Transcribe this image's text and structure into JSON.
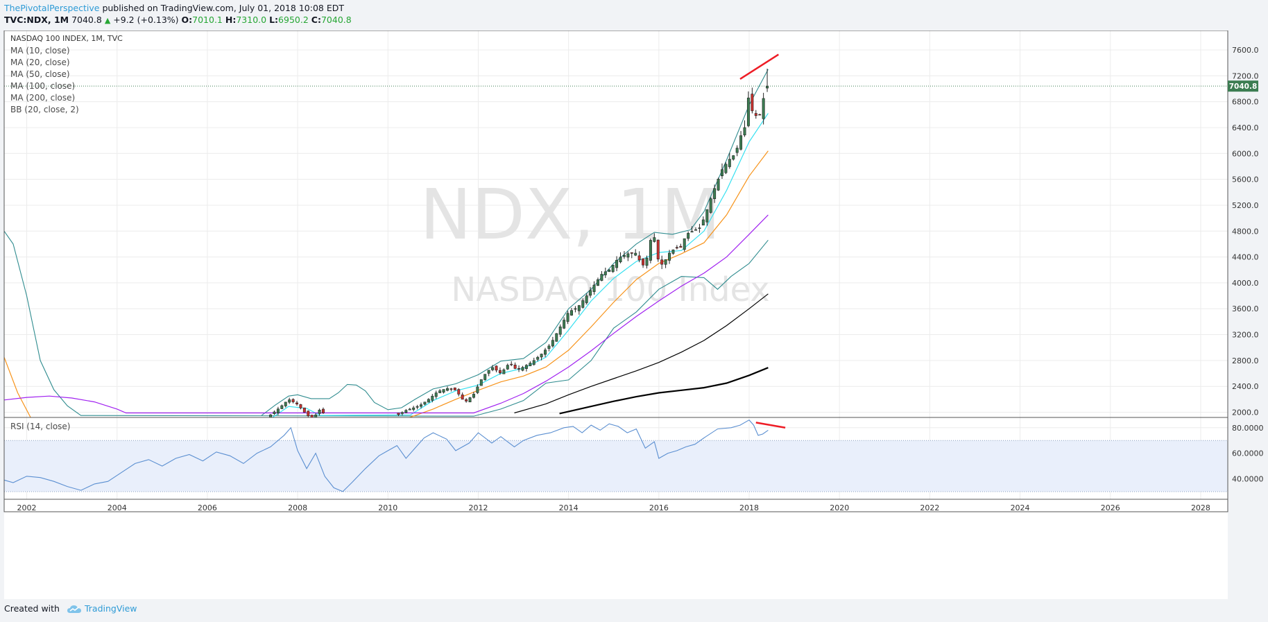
{
  "header": {
    "author": "ThePivotalPerspective",
    "published_text": "published on TradingView.com, July 01, 2018 10:08 EDT",
    "symbol": "TVC:NDX, 1M",
    "last": "7040.8",
    "change": "+9.2 (+0.13%)",
    "open_label": "O:",
    "open": "7010.1",
    "high_label": "H:",
    "high": "7310.0",
    "low_label": "L:",
    "low": "6950.2",
    "close_label": "C:",
    "close": "7040.8"
  },
  "footer": {
    "created_with": "Created with",
    "brand": "TradingView"
  },
  "colors": {
    "up": "#3c7d52",
    "down": "#c9322f",
    "bb": "#2f8c8f",
    "ma10": "#34e0f0",
    "ma20": "#f7931a",
    "ma50": "#a020f0",
    "ma100": "#000000",
    "ma200": "#000000",
    "rsi": "#5b8fd1",
    "annotation": "#ee1c25",
    "price_badge": "#3c7d52"
  },
  "chart_data": [
    {
      "type": "candlestick",
      "title": "NASDAQ 100 INDEX, 1M, TVC",
      "watermark_symbol": "NDX, 1M",
      "watermark_name": "NASDAQ 100 Index",
      "legend": [
        "MA (10, close)",
        "MA (20, close)",
        "MA (50, close)",
        "MA (100, close)",
        "MA (200, close)",
        "BB (20, close, 2)"
      ],
      "x_ticks": [
        "2002",
        "2004",
        "2006",
        "2008",
        "2010",
        "2012",
        "2014",
        "2016",
        "2018",
        "2020",
        "2022",
        "2024",
        "2026",
        "2028"
      ],
      "xlim": [
        2001.5,
        2028.6
      ],
      "y_ticks": [
        "2000.0",
        "2400.0",
        "2800.0",
        "3200.0",
        "3600.0",
        "4000.0",
        "4400.0",
        "4800.0",
        "5200.0",
        "5600.0",
        "6000.0",
        "6400.0",
        "6800.0",
        "7200.0",
        "7600.0"
      ],
      "ylim": [
        1920,
        7900
      ],
      "last_price_label": "7040.8",
      "last_price": 7040.8,
      "ohlc_anchors": [
        [
          2007.4,
          1960
        ],
        [
          2007.6,
          2070
        ],
        [
          2007.8,
          2200
        ],
        [
          2008.0,
          2120
        ],
        [
          2008.15,
          2000
        ],
        [
          2008.3,
          1900
        ],
        [
          2008.4,
          1960
        ],
        [
          2008.5,
          2050
        ],
        [
          2008.6,
          1960
        ],
        [
          2010.2,
          1950
        ],
        [
          2010.4,
          2030
        ],
        [
          2010.7,
          2100
        ],
        [
          2010.9,
          2200
        ],
        [
          2011.1,
          2320
        ],
        [
          2011.3,
          2370
        ],
        [
          2011.5,
          2340
        ],
        [
          2011.6,
          2250
        ],
        [
          2011.7,
          2150
        ],
        [
          2011.9,
          2280
        ],
        [
          2012.1,
          2550
        ],
        [
          2012.3,
          2700
        ],
        [
          2012.5,
          2600
        ],
        [
          2012.7,
          2770
        ],
        [
          2012.85,
          2650
        ],
        [
          2013.0,
          2700
        ],
        [
          2013.2,
          2780
        ],
        [
          2013.4,
          2900
        ],
        [
          2013.6,
          3050
        ],
        [
          2013.8,
          3300
        ],
        [
          2014.0,
          3550
        ],
        [
          2014.2,
          3620
        ],
        [
          2014.4,
          3800
        ],
        [
          2014.6,
          4000
        ],
        [
          2014.75,
          4150
        ],
        [
          2014.9,
          4200
        ],
        [
          2015.1,
          4380
        ],
        [
          2015.3,
          4450
        ],
        [
          2015.5,
          4460
        ],
        [
          2015.6,
          4300
        ],
        [
          2015.7,
          4250
        ],
        [
          2015.8,
          4650
        ],
        [
          2015.9,
          4700
        ],
        [
          2016.0,
          4300
        ],
        [
          2016.1,
          4280
        ],
        [
          2016.2,
          4440
        ],
        [
          2016.35,
          4530
        ],
        [
          2016.5,
          4550
        ],
        [
          2016.6,
          4750
        ],
        [
          2016.75,
          4800
        ],
        [
          2016.9,
          4850
        ],
        [
          2017.0,
          5000
        ],
        [
          2017.2,
          5400
        ],
        [
          2017.4,
          5750
        ],
        [
          2017.55,
          5900
        ],
        [
          2017.7,
          6000
        ],
        [
          2017.8,
          6250
        ],
        [
          2017.9,
          6400
        ],
        [
          2018.0,
          6950
        ],
        [
          2018.08,
          6600
        ],
        [
          2018.17,
          6580
        ],
        [
          2018.25,
          6600
        ],
        [
          2018.33,
          6900
        ],
        [
          2018.42,
          7040
        ]
      ],
      "moving_averages": {
        "ma10": [
          [
            2007.4,
            1900
          ],
          [
            2007.8,
            2090
          ],
          [
            2008.2,
            2060
          ],
          [
            2008.5,
            1950
          ],
          [
            2010.5,
            1960
          ],
          [
            2011.0,
            2180
          ],
          [
            2011.5,
            2330
          ],
          [
            2012.0,
            2420
          ],
          [
            2012.5,
            2600
          ],
          [
            2013.0,
            2680
          ],
          [
            2013.5,
            2850
          ],
          [
            2014.0,
            3270
          ],
          [
            2014.5,
            3720
          ],
          [
            2015.0,
            4070
          ],
          [
            2015.5,
            4330
          ],
          [
            2016.0,
            4470
          ],
          [
            2016.5,
            4500
          ],
          [
            2017.0,
            4800
          ],
          [
            2017.5,
            5430
          ],
          [
            2018.0,
            6180
          ],
          [
            2018.42,
            6620
          ]
        ],
        "ma20": [
          [
            2001.5,
            2850
          ],
          [
            2001.8,
            2300
          ],
          [
            2002.1,
            1900
          ],
          [
            2010.4,
            1900
          ],
          [
            2011.0,
            2050
          ],
          [
            2011.5,
            2200
          ],
          [
            2012.0,
            2340
          ],
          [
            2012.5,
            2470
          ],
          [
            2013.0,
            2560
          ],
          [
            2013.5,
            2700
          ],
          [
            2014.0,
            2960
          ],
          [
            2014.5,
            3320
          ],
          [
            2015.0,
            3700
          ],
          [
            2015.5,
            4050
          ],
          [
            2016.0,
            4300
          ],
          [
            2016.5,
            4450
          ],
          [
            2017.0,
            4620
          ],
          [
            2017.5,
            5050
          ],
          [
            2018.0,
            5650
          ],
          [
            2018.42,
            6040
          ]
        ],
        "ma50": [
          [
            2001.5,
            2190
          ],
          [
            2002.0,
            2230
          ],
          [
            2002.5,
            2250
          ],
          [
            2003.0,
            2220
          ],
          [
            2003.5,
            2160
          ],
          [
            2004.0,
            2050
          ],
          [
            2004.2,
            1990
          ],
          [
            2011.9,
            1990
          ],
          [
            2012.5,
            2140
          ],
          [
            2013.0,
            2290
          ],
          [
            2013.5,
            2480
          ],
          [
            2014.0,
            2700
          ],
          [
            2014.5,
            2950
          ],
          [
            2015.0,
            3220
          ],
          [
            2015.5,
            3480
          ],
          [
            2016.0,
            3720
          ],
          [
            2016.5,
            3950
          ],
          [
            2017.0,
            4150
          ],
          [
            2017.5,
            4400
          ],
          [
            2018.0,
            4750
          ],
          [
            2018.42,
            5050
          ]
        ],
        "ma100": [
          [
            2012.8,
            1990
          ],
          [
            2013.5,
            2130
          ],
          [
            2014.0,
            2270
          ],
          [
            2014.5,
            2400
          ],
          [
            2015.0,
            2520
          ],
          [
            2015.5,
            2640
          ],
          [
            2016.0,
            2770
          ],
          [
            2016.5,
            2930
          ],
          [
            2017.0,
            3110
          ],
          [
            2017.5,
            3340
          ],
          [
            2018.0,
            3600
          ],
          [
            2018.42,
            3830
          ]
        ],
        "ma200": [
          [
            2013.8,
            1980
          ],
          [
            2014.5,
            2090
          ],
          [
            2015.0,
            2170
          ],
          [
            2015.5,
            2240
          ],
          [
            2016.0,
            2300
          ],
          [
            2016.5,
            2340
          ],
          [
            2017.0,
            2380
          ],
          [
            2017.5,
            2450
          ],
          [
            2018.0,
            2570
          ],
          [
            2018.42,
            2690
          ]
        ]
      },
      "bollinger": {
        "upper": [
          [
            2007.2,
            1950
          ],
          [
            2007.5,
            2110
          ],
          [
            2007.8,
            2250
          ],
          [
            2008.0,
            2270
          ],
          [
            2008.3,
            2210
          ],
          [
            2008.7,
            2210
          ],
          [
            2008.9,
            2300
          ],
          [
            2009.1,
            2430
          ],
          [
            2009.3,
            2420
          ],
          [
            2009.5,
            2330
          ],
          [
            2009.7,
            2150
          ],
          [
            2010.0,
            2040
          ],
          [
            2010.3,
            2070
          ],
          [
            2010.6,
            2200
          ],
          [
            2011.0,
            2360
          ],
          [
            2011.5,
            2440
          ],
          [
            2012.0,
            2580
          ],
          [
            2012.5,
            2790
          ],
          [
            2013.0,
            2830
          ],
          [
            2013.5,
            3080
          ],
          [
            2014.0,
            3600
          ],
          [
            2014.5,
            3900
          ],
          [
            2015.0,
            4300
          ],
          [
            2015.5,
            4600
          ],
          [
            2015.9,
            4780
          ],
          [
            2016.3,
            4750
          ],
          [
            2016.7,
            4820
          ],
          [
            2017.0,
            5100
          ],
          [
            2017.5,
            5900
          ],
          [
            2018.0,
            6750
          ],
          [
            2018.42,
            7300
          ]
        ],
        "lower": [
          [
            2001.5,
            4800
          ],
          [
            2001.7,
            4600
          ],
          [
            2002.0,
            3800
          ],
          [
            2002.3,
            2800
          ],
          [
            2002.6,
            2350
          ],
          [
            2002.9,
            2100
          ],
          [
            2003.2,
            1950
          ],
          [
            2011.9,
            1940
          ],
          [
            2012.5,
            2050
          ],
          [
            2013.0,
            2180
          ],
          [
            2013.5,
            2450
          ],
          [
            2014.0,
            2500
          ],
          [
            2014.5,
            2800
          ],
          [
            2015.0,
            3300
          ],
          [
            2015.5,
            3550
          ],
          [
            2016.0,
            3900
          ],
          [
            2016.5,
            4100
          ],
          [
            2017.0,
            4080
          ],
          [
            2017.3,
            3900
          ],
          [
            2017.6,
            4100
          ],
          [
            2018.0,
            4300
          ],
          [
            2018.42,
            4660
          ]
        ]
      },
      "trendline": [
        [
          2017.8,
          7150
        ],
        [
          2018.65,
          7530
        ]
      ]
    },
    {
      "type": "line",
      "legend": [
        "RSI (14, close)"
      ],
      "y_ticks": [
        "40.0000",
        "60.0000",
        "80.0000"
      ],
      "ylim": [
        24,
        88
      ],
      "band": [
        30,
        70
      ],
      "series": [
        {
          "values": [
            [
              2001.5,
              39
            ],
            [
              2001.7,
              37
            ],
            [
              2002.0,
              42
            ],
            [
              2002.3,
              41
            ],
            [
              2002.6,
              38
            ],
            [
              2002.9,
              34
            ],
            [
              2003.2,
              31
            ],
            [
              2003.5,
              36
            ],
            [
              2003.8,
              38
            ],
            [
              2004.1,
              45
            ],
            [
              2004.4,
              52
            ],
            [
              2004.7,
              55
            ],
            [
              2005.0,
              50
            ],
            [
              2005.3,
              56
            ],
            [
              2005.6,
              59
            ],
            [
              2005.9,
              54
            ],
            [
              2006.2,
              61
            ],
            [
              2006.5,
              58
            ],
            [
              2006.8,
              52
            ],
            [
              2007.1,
              60
            ],
            [
              2007.4,
              65
            ],
            [
              2007.7,
              74
            ],
            [
              2007.85,
              80
            ],
            [
              2008.0,
              62
            ],
            [
              2008.2,
              48
            ],
            [
              2008.4,
              60
            ],
            [
              2008.6,
              42
            ],
            [
              2008.8,
              33
            ],
            [
              2009.0,
              30
            ],
            [
              2009.2,
              37
            ],
            [
              2009.5,
              48
            ],
            [
              2009.8,
              58
            ],
            [
              2010.0,
              62
            ],
            [
              2010.2,
              66
            ],
            [
              2010.4,
              56
            ],
            [
              2010.6,
              64
            ],
            [
              2010.8,
              72
            ],
            [
              2011.0,
              76
            ],
            [
              2011.3,
              71
            ],
            [
              2011.5,
              62
            ],
            [
              2011.8,
              68
            ],
            [
              2012.0,
              76
            ],
            [
              2012.3,
              68
            ],
            [
              2012.5,
              73
            ],
            [
              2012.8,
              65
            ],
            [
              2013.0,
              70
            ],
            [
              2013.3,
              74
            ],
            [
              2013.6,
              76
            ],
            [
              2013.9,
              80
            ],
            [
              2014.1,
              81
            ],
            [
              2014.3,
              76
            ],
            [
              2014.5,
              82
            ],
            [
              2014.7,
              78
            ],
            [
              2014.9,
              83
            ],
            [
              2015.1,
              81
            ],
            [
              2015.3,
              76
            ],
            [
              2015.5,
              79
            ],
            [
              2015.7,
              64
            ],
            [
              2015.9,
              69
            ],
            [
              2016.0,
              56
            ],
            [
              2016.2,
              60
            ],
            [
              2016.4,
              62
            ],
            [
              2016.6,
              65
            ],
            [
              2016.8,
              67
            ],
            [
              2017.0,
              72
            ],
            [
              2017.3,
              79
            ],
            [
              2017.6,
              80
            ],
            [
              2017.8,
              82
            ],
            [
              2018.0,
              86
            ],
            [
              2018.1,
              82
            ],
            [
              2018.2,
              74
            ],
            [
              2018.3,
              75
            ],
            [
              2018.42,
              78
            ]
          ]
        }
      ],
      "trendline": [
        [
          2018.15,
          84
        ],
        [
          2018.8,
          80
        ]
      ]
    }
  ]
}
